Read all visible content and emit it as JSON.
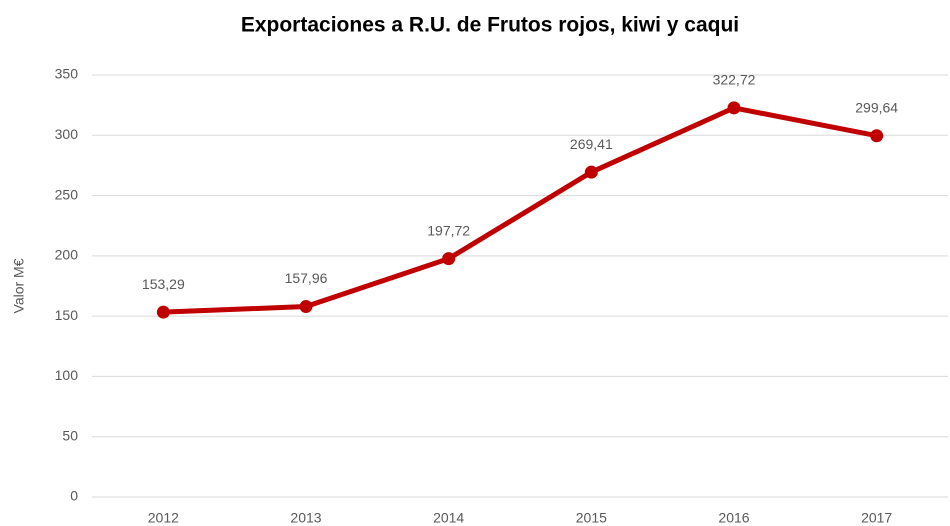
{
  "chart_data": {
    "type": "line",
    "title": "Exportaciones a R.U. de Frutos rojos, kiwi y caqui",
    "y_label": "Valor M€",
    "categories": [
      "2012",
      "2013",
      "2014",
      "2015",
      "2016",
      "2017"
    ],
    "values": [
      153.29,
      157.96,
      197.72,
      269.41,
      322.72,
      299.64
    ],
    "value_labels": [
      "153,29",
      "157,96",
      "197,72",
      "269,41",
      "322,72",
      "299,64"
    ],
    "color": "#c00000",
    "ylim": [
      0,
      350
    ],
    "yticks": [
      0,
      50,
      100,
      150,
      200,
      250,
      300,
      350
    ],
    "grid": true
  }
}
